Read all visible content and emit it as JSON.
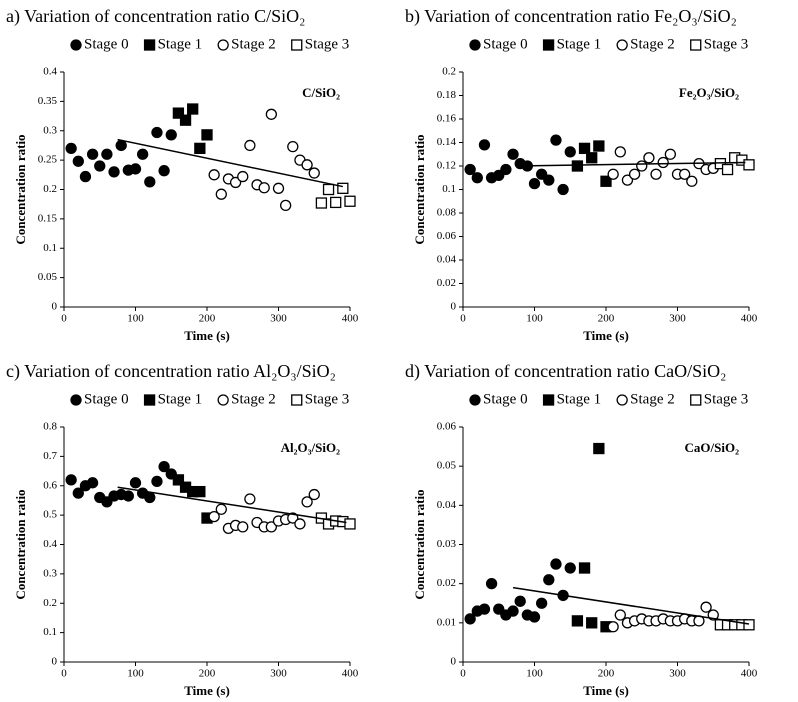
{
  "chart_data": [
    {
      "type": "scatter",
      "title": "a) Variation of concentration ratio C/SiO₂",
      "annotation": "C/SiO₂",
      "x_label": "Time (s)",
      "y_label": "Concentration ratio",
      "xlim": [
        0,
        400
      ],
      "xticks": [
        0,
        100,
        200,
        300,
        400
      ],
      "ylim": [
        0,
        0.4
      ],
      "yticks": [
        0,
        0.05,
        0.1,
        0.15,
        0.2,
        0.25,
        0.3,
        0.35,
        0.4
      ],
      "series": [
        {
          "name": "Stage 0",
          "color": "#000000",
          "marker": "circle",
          "filled": true,
          "x": [
            10,
            20,
            30,
            40,
            50,
            60,
            70,
            80,
            90,
            100,
            110,
            120,
            130,
            140,
            150
          ],
          "values": [
            0.27,
            0.248,
            0.222,
            0.26,
            0.24,
            0.26,
            0.23,
            0.275,
            0.233,
            0.235,
            0.26,
            0.213,
            0.297,
            0.232,
            0.293
          ]
        },
        {
          "name": "Stage 1",
          "color": "#000000",
          "marker": "square",
          "filled": true,
          "x": [
            160,
            170,
            180,
            190,
            200
          ],
          "values": [
            0.33,
            0.318,
            0.337,
            0.27,
            0.293
          ]
        },
        {
          "name": "Stage 2",
          "color": "#000000",
          "marker": "circle",
          "filled": false,
          "x": [
            210,
            220,
            230,
            240,
            250,
            260,
            270,
            280,
            290,
            300,
            310,
            320,
            330,
            340,
            350
          ],
          "values": [
            0.225,
            0.192,
            0.218,
            0.212,
            0.222,
            0.275,
            0.208,
            0.203,
            0.328,
            0.202,
            0.173,
            0.273,
            0.25,
            0.242,
            0.228
          ]
        },
        {
          "name": "Stage 3",
          "color": "#000000",
          "marker": "square",
          "filled": false,
          "x": [
            360,
            370,
            380,
            390,
            400
          ],
          "values": [
            0.177,
            0.2,
            0.178,
            0.202,
            0.18
          ]
        }
      ],
      "trendline": {
        "x": [
          75,
          390
        ],
        "y": [
          0.285,
          0.205
        ]
      }
    },
    {
      "type": "scatter",
      "title": "b) Variation of concentration ratio Fe₂O₃/SiO₂",
      "annotation": "Fe₂O₃/SiO₂",
      "x_label": "Time (s)",
      "y_label": "Concentration ratio",
      "xlim": [
        0,
        400
      ],
      "xticks": [
        0,
        100,
        200,
        300,
        400
      ],
      "ylim": [
        0,
        0.2
      ],
      "yticks": [
        0,
        0.02,
        0.04,
        0.06,
        0.08,
        0.1,
        0.12,
        0.14,
        0.16,
        0.18,
        0.2
      ],
      "series": [
        {
          "name": "Stage 0",
          "color": "#000000",
          "marker": "circle",
          "filled": true,
          "x": [
            10,
            20,
            30,
            40,
            50,
            60,
            70,
            80,
            90,
            100,
            110,
            120,
            130,
            140,
            150
          ],
          "values": [
            0.117,
            0.11,
            0.138,
            0.11,
            0.112,
            0.117,
            0.13,
            0.122,
            0.12,
            0.105,
            0.113,
            0.108,
            0.142,
            0.1,
            0.132
          ]
        },
        {
          "name": "Stage 1",
          "color": "#000000",
          "marker": "square",
          "filled": true,
          "x": [
            160,
            170,
            180,
            190,
            200
          ],
          "values": [
            0.12,
            0.135,
            0.127,
            0.137,
            0.107
          ]
        },
        {
          "name": "Stage 2",
          "color": "#000000",
          "marker": "circle",
          "filled": false,
          "x": [
            210,
            220,
            230,
            240,
            250,
            260,
            270,
            280,
            290,
            300,
            310,
            320,
            330,
            340,
            350
          ],
          "values": [
            0.113,
            0.132,
            0.108,
            0.113,
            0.12,
            0.127,
            0.113,
            0.123,
            0.13,
            0.113,
            0.113,
            0.107,
            0.122,
            0.117,
            0.118
          ]
        },
        {
          "name": "Stage 3",
          "color": "#000000",
          "marker": "square",
          "filled": false,
          "x": [
            360,
            370,
            380,
            390,
            400
          ],
          "values": [
            0.122,
            0.117,
            0.127,
            0.125,
            0.121
          ]
        }
      ],
      "trendline": {
        "x": [
          75,
          395
        ],
        "y": [
          0.12,
          0.123
        ]
      }
    },
    {
      "type": "scatter",
      "title": "c) Variation of concentration ratio Al₂O₃/SiO₂",
      "annotation": "Al₂O₃/SiO₂",
      "x_label": "Time (s)",
      "y_label": "Concentration ratio",
      "xlim": [
        0,
        400
      ],
      "xticks": [
        0,
        100,
        200,
        300,
        400
      ],
      "ylim": [
        0,
        0.8
      ],
      "yticks": [
        0,
        0.1,
        0.2,
        0.3,
        0.4,
        0.5,
        0.6,
        0.7,
        0.8
      ],
      "series": [
        {
          "name": "Stage 0",
          "color": "#000000",
          "marker": "circle",
          "filled": true,
          "x": [
            10,
            20,
            30,
            40,
            50,
            60,
            70,
            80,
            90,
            100,
            110,
            120,
            130,
            140,
            150
          ],
          "values": [
            0.62,
            0.575,
            0.6,
            0.61,
            0.56,
            0.545,
            0.565,
            0.57,
            0.565,
            0.61,
            0.575,
            0.56,
            0.615,
            0.665,
            0.64
          ]
        },
        {
          "name": "Stage 1",
          "color": "#000000",
          "marker": "square",
          "filled": true,
          "x": [
            160,
            170,
            180,
            190,
            200
          ],
          "values": [
            0.62,
            0.595,
            0.58,
            0.58,
            0.49
          ]
        },
        {
          "name": "Stage 2",
          "color": "#000000",
          "marker": "circle",
          "filled": false,
          "x": [
            210,
            220,
            230,
            240,
            250,
            260,
            270,
            280,
            290,
            300,
            310,
            320,
            330,
            340,
            350
          ],
          "values": [
            0.495,
            0.52,
            0.455,
            0.465,
            0.46,
            0.555,
            0.475,
            0.46,
            0.46,
            0.48,
            0.485,
            0.49,
            0.47,
            0.545,
            0.57
          ]
        },
        {
          "name": "Stage 3",
          "color": "#000000",
          "marker": "square",
          "filled": false,
          "x": [
            360,
            370,
            380,
            390,
            400
          ],
          "values": [
            0.49,
            0.47,
            0.48,
            0.478,
            0.47
          ]
        }
      ],
      "trendline": {
        "x": [
          75,
          395
        ],
        "y": [
          0.595,
          0.475
        ]
      }
    },
    {
      "type": "scatter",
      "title": "d) Variation of concentration ratio CaO/SiO₂",
      "annotation": "CaO/SiO₂",
      "x_label": "Time (s)",
      "y_label": "Concentration ratio",
      "xlim": [
        0,
        400
      ],
      "xticks": [
        0,
        100,
        200,
        300,
        400
      ],
      "ylim": [
        0,
        0.06
      ],
      "yticks": [
        0,
        0.01,
        0.02,
        0.03,
        0.04,
        0.05,
        0.06
      ],
      "series": [
        {
          "name": "Stage 0",
          "color": "#000000",
          "marker": "circle",
          "filled": true,
          "x": [
            10,
            20,
            30,
            40,
            50,
            60,
            70,
            80,
            90,
            100,
            110,
            120,
            130,
            140,
            150
          ],
          "values": [
            0.011,
            0.013,
            0.0135,
            0.02,
            0.0135,
            0.012,
            0.013,
            0.0155,
            0.012,
            0.0115,
            0.015,
            0.021,
            0.025,
            0.017,
            0.024
          ]
        },
        {
          "name": "Stage 1",
          "color": "#000000",
          "marker": "square",
          "filled": true,
          "x": [
            160,
            170,
            180,
            190,
            200
          ],
          "values": [
            0.0105,
            0.024,
            0.01,
            0.0545,
            0.009
          ]
        },
        {
          "name": "Stage 2",
          "color": "#000000",
          "marker": "circle",
          "filled": false,
          "x": [
            210,
            220,
            230,
            240,
            250,
            260,
            270,
            280,
            290,
            300,
            310,
            320,
            330,
            340,
            350
          ],
          "values": [
            0.009,
            0.012,
            0.01,
            0.0105,
            0.011,
            0.0105,
            0.0105,
            0.011,
            0.0105,
            0.0105,
            0.011,
            0.0105,
            0.0105,
            0.014,
            0.012
          ]
        },
        {
          "name": "Stage 3",
          "color": "#000000",
          "marker": "square",
          "filled": false,
          "x": [
            360,
            370,
            380,
            390,
            400
          ],
          "values": [
            0.0095,
            0.0095,
            0.0095,
            0.0095,
            0.0095
          ]
        }
      ],
      "trendline": {
        "x": [
          70,
          400
        ],
        "y": [
          0.019,
          0.0097
        ]
      }
    }
  ]
}
